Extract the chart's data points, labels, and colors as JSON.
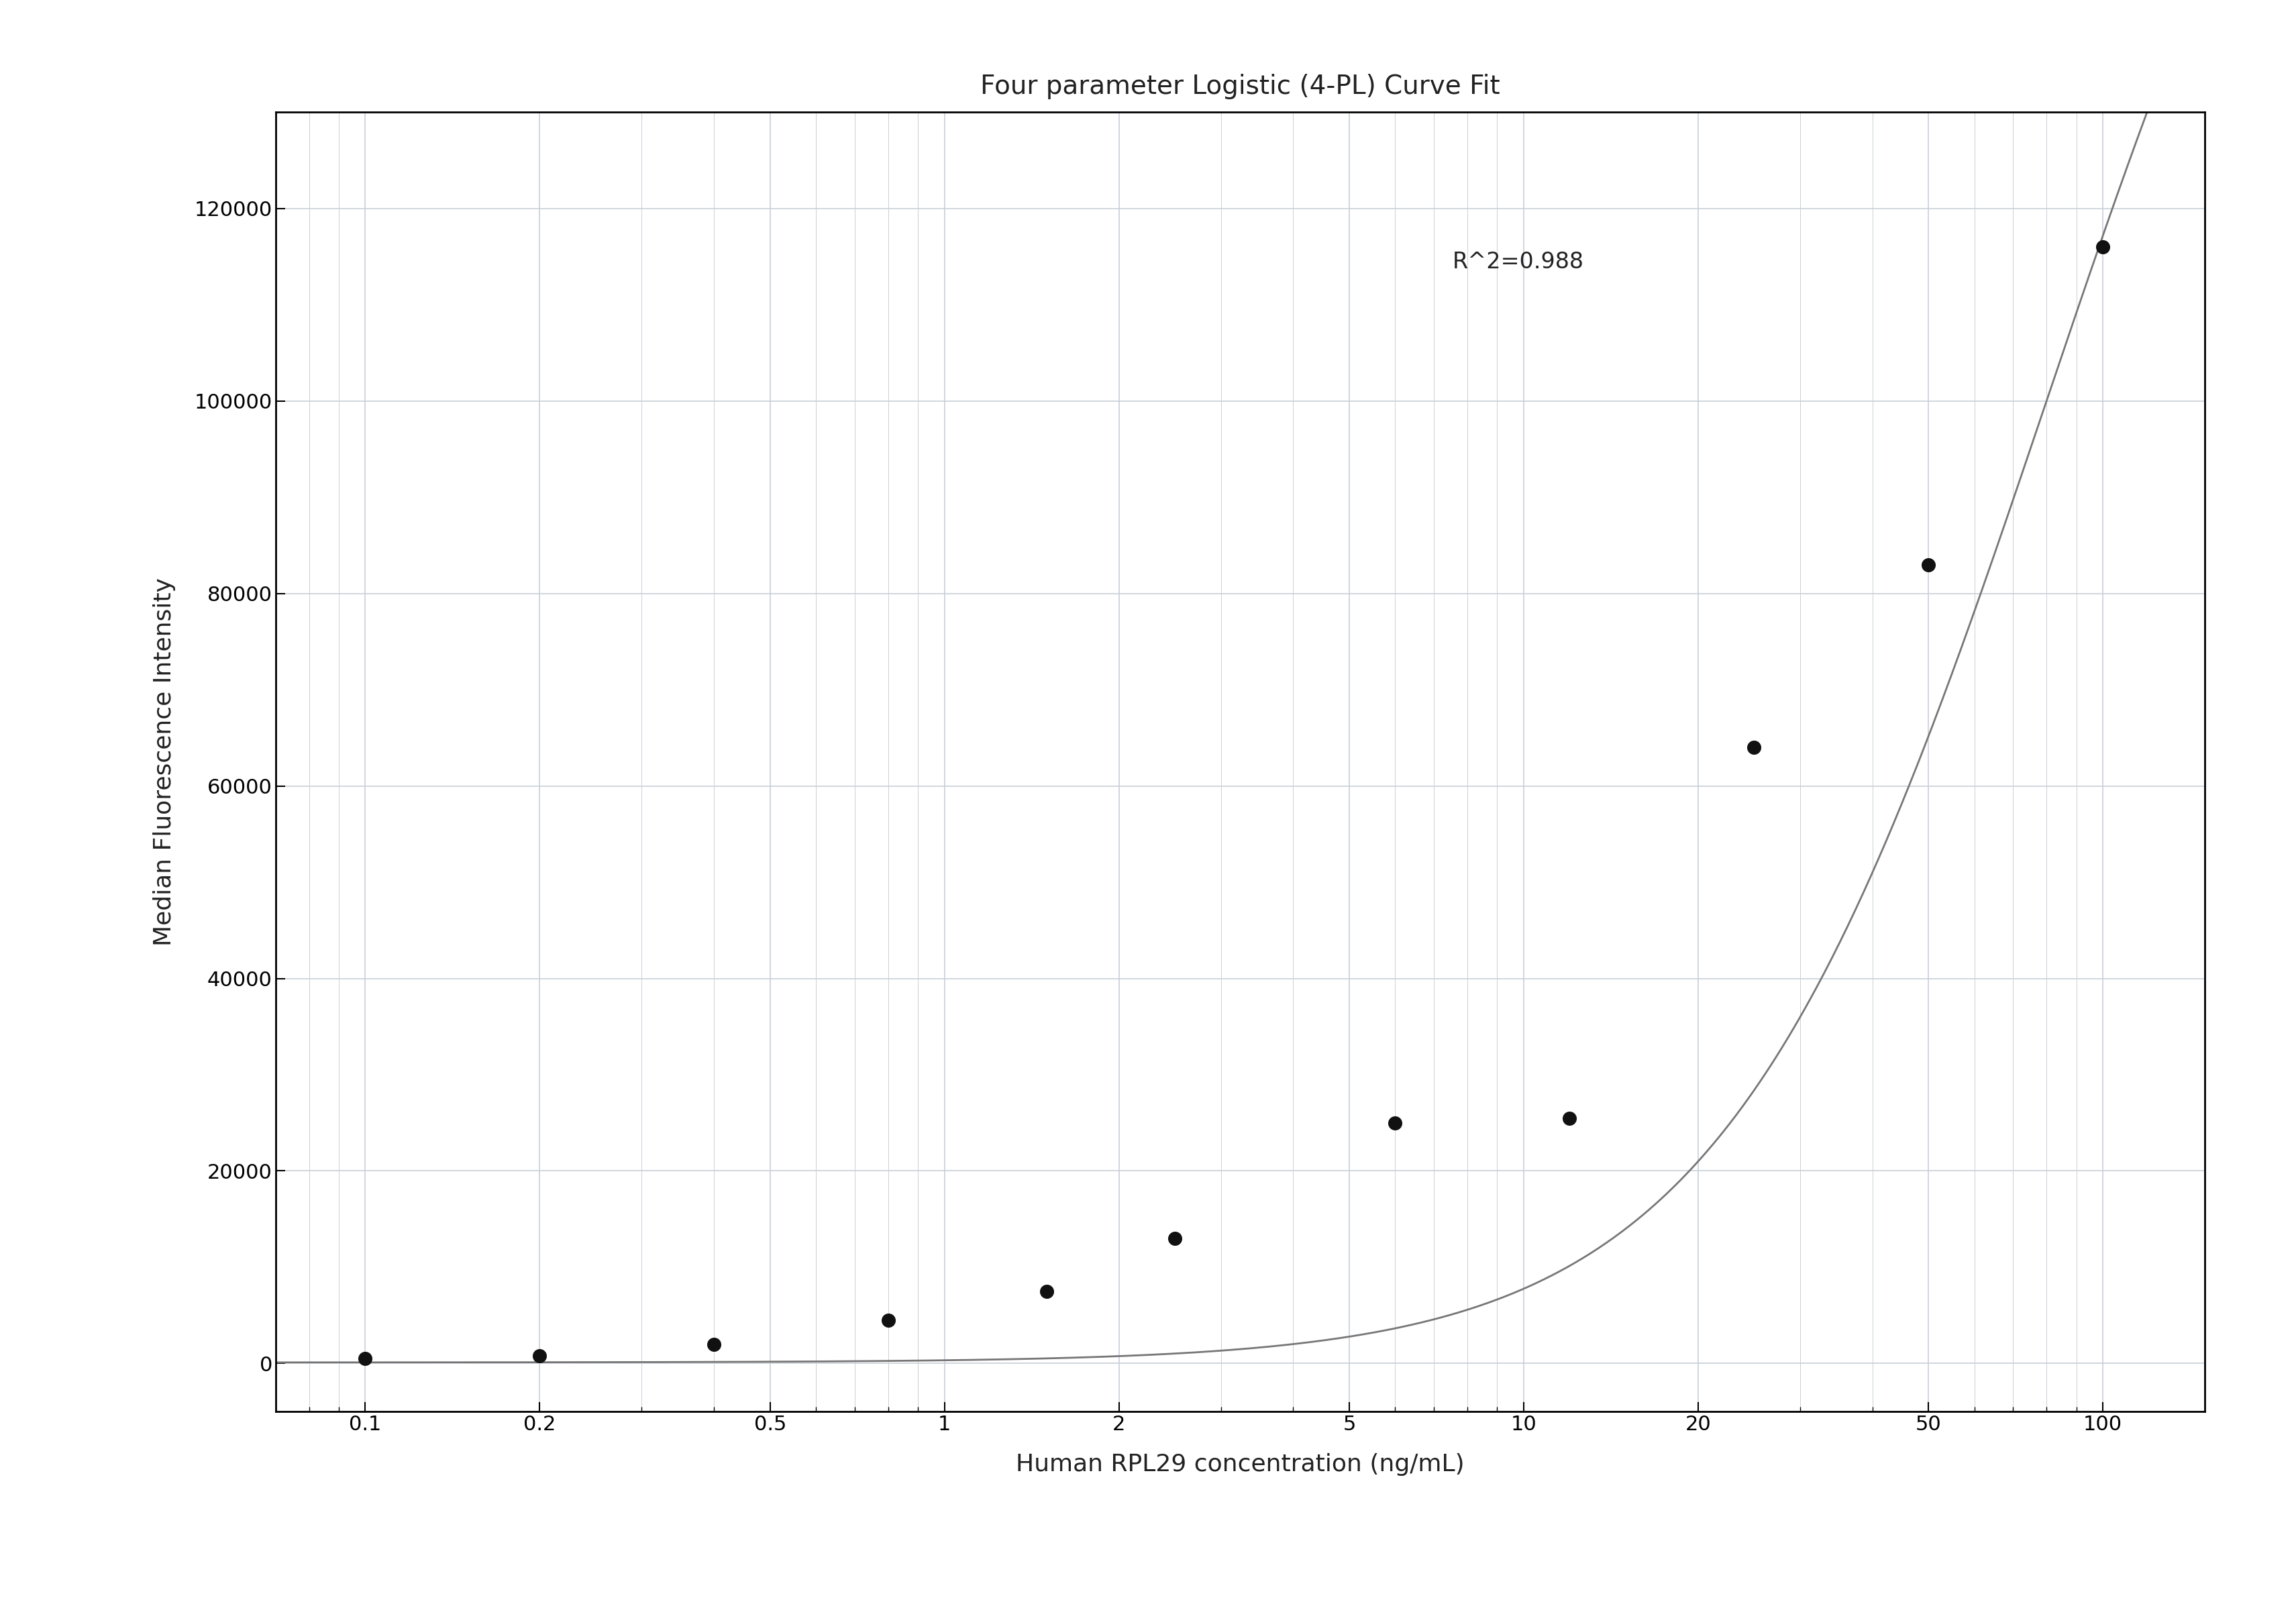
{
  "title": "Four parameter Logistic (4-PL) Curve Fit",
  "xlabel": "Human RPL29 concentration (ng/mL)",
  "ylabel": "Median Fluorescence Intensity",
  "annotation": "R^2=0.988",
  "scatter_x": [
    0.1,
    0.2,
    0.4,
    0.8,
    1.5,
    2.5,
    6.0,
    12.0,
    25.0,
    50.0,
    100.0
  ],
  "scatter_y": [
    500,
    800,
    2000,
    4500,
    7500,
    13000,
    25000,
    25500,
    64000,
    83000,
    116000
  ],
  "xticks": [
    0.1,
    0.2,
    0.5,
    1,
    2,
    5,
    10,
    20,
    50,
    100
  ],
  "xtick_labels": [
    "0.1",
    "0.2",
    "0.5",
    "1",
    "2",
    "5",
    "10",
    "20",
    "50",
    "100"
  ],
  "ylim": [
    -5000,
    130000
  ],
  "yticks": [
    0,
    20000,
    40000,
    60000,
    80000,
    100000,
    120000
  ],
  "ytick_labels": [
    "0",
    "20000",
    "40000",
    "60000",
    "80000",
    "100000",
    "120000"
  ],
  "xscale": "log",
  "xlim": [
    0.07,
    150
  ],
  "curve_color": "#777777",
  "scatter_color": "#111111",
  "bg_color": "#ffffff",
  "grid_color": "#c8d0d8",
  "title_fontsize": 28,
  "label_fontsize": 26,
  "tick_fontsize": 22,
  "annotation_fontsize": 24,
  "4pl_A": 100,
  "4pl_B": 1.55,
  "4pl_C": 80.0,
  "4pl_D": 200000
}
